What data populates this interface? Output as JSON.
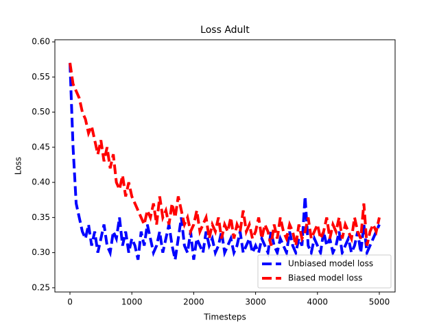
{
  "chart_data": {
    "type": "line",
    "title": "Loss Adult",
    "x_label": "Timesteps",
    "y_label": "Loss",
    "x": [
      0,
      50,
      100,
      150,
      200,
      250,
      300,
      350,
      400,
      450,
      500,
      550,
      600,
      650,
      700,
      750,
      800,
      850,
      900,
      950,
      1000,
      1050,
      1100,
      1150,
      1200,
      1250,
      1300,
      1350,
      1400,
      1450,
      1500,
      1550,
      1600,
      1650,
      1700,
      1750,
      1800,
      1850,
      1900,
      1950,
      2000,
      2050,
      2100,
      2150,
      2200,
      2250,
      2300,
      2350,
      2400,
      2450,
      2500,
      2550,
      2600,
      2650,
      2700,
      2750,
      2800,
      2850,
      2900,
      2950,
      3000,
      3050,
      3100,
      3150,
      3200,
      3250,
      3300,
      3350,
      3400,
      3450,
      3500,
      3550,
      3600,
      3650,
      3700,
      3750,
      3800,
      3850,
      3900,
      3950,
      4000,
      4050,
      4100,
      4150,
      4200,
      4250,
      4300,
      4350,
      4400,
      4450,
      4500,
      4550,
      4600,
      4650,
      4700,
      4750,
      4800,
      4850,
      4900,
      4950,
      5000
    ],
    "series": [
      {
        "name": "Unbiased model loss",
        "color": "#0000ff",
        "values": [
          0.57,
          0.45,
          0.37,
          0.35,
          0.33,
          0.32,
          0.34,
          0.31,
          0.33,
          0.3,
          0.32,
          0.34,
          0.31,
          0.3,
          0.33,
          0.32,
          0.35,
          0.31,
          0.33,
          0.3,
          0.32,
          0.31,
          0.29,
          0.33,
          0.31,
          0.34,
          0.32,
          0.3,
          0.31,
          0.33,
          0.3,
          0.32,
          0.34,
          0.31,
          0.29,
          0.32,
          0.35,
          0.31,
          0.3,
          0.33,
          0.29,
          0.32,
          0.31,
          0.3,
          0.33,
          0.31,
          0.32,
          0.3,
          0.31,
          0.33,
          0.3,
          0.31,
          0.32,
          0.3,
          0.31,
          0.33,
          0.3,
          0.31,
          0.32,
          0.3,
          0.31,
          0.3,
          0.32,
          0.31,
          0.3,
          0.33,
          0.31,
          0.3,
          0.32,
          0.31,
          0.3,
          0.33,
          0.31,
          0.3,
          0.32,
          0.31,
          0.38,
          0.31,
          0.3,
          0.32,
          0.31,
          0.3,
          0.33,
          0.31,
          0.32,
          0.3,
          0.31,
          0.33,
          0.3,
          0.31,
          0.32,
          0.3,
          0.31,
          0.33,
          0.3,
          0.34,
          0.3,
          0.31,
          0.32,
          0.33,
          0.34
        ]
      },
      {
        "name": "Biased model loss",
        "color": "#ff0000",
        "values": [
          0.57,
          0.54,
          0.53,
          0.52,
          0.5,
          0.49,
          0.47,
          0.48,
          0.46,
          0.44,
          0.46,
          0.43,
          0.45,
          0.42,
          0.44,
          0.4,
          0.39,
          0.41,
          0.38,
          0.4,
          0.38,
          0.37,
          0.36,
          0.35,
          0.34,
          0.36,
          0.35,
          0.37,
          0.34,
          0.38,
          0.35,
          0.36,
          0.34,
          0.37,
          0.35,
          0.38,
          0.36,
          0.34,
          0.35,
          0.33,
          0.34,
          0.36,
          0.33,
          0.34,
          0.35,
          0.32,
          0.34,
          0.33,
          0.35,
          0.32,
          0.34,
          0.33,
          0.35,
          0.32,
          0.34,
          0.33,
          0.36,
          0.33,
          0.34,
          0.32,
          0.33,
          0.35,
          0.32,
          0.34,
          0.33,
          0.31,
          0.34,
          0.32,
          0.35,
          0.33,
          0.32,
          0.34,
          0.33,
          0.31,
          0.34,
          0.32,
          0.33,
          0.35,
          0.32,
          0.33,
          0.34,
          0.32,
          0.33,
          0.35,
          0.32,
          0.34,
          0.33,
          0.35,
          0.32,
          0.34,
          0.33,
          0.32,
          0.35,
          0.33,
          0.32,
          0.37,
          0.31,
          0.33,
          0.34,
          0.33,
          0.35
        ]
      }
    ],
    "xlim": [
      -244,
      5255
    ],
    "ylim": [
      0.244,
      0.603
    ],
    "xticks": [
      0,
      1000,
      2000,
      3000,
      4000,
      5000
    ],
    "yticks": [
      0.25,
      {
        "value": 0.3,
        "label": "0.30"
      },
      0.35,
      {
        "value": 0.4,
        "label": "0.40"
      },
      0.45,
      {
        "value": 0.5,
        "label": "0.50"
      },
      0.55,
      {
        "value": 0.6,
        "label": "0.60"
      }
    ],
    "legend": "lower right"
  }
}
